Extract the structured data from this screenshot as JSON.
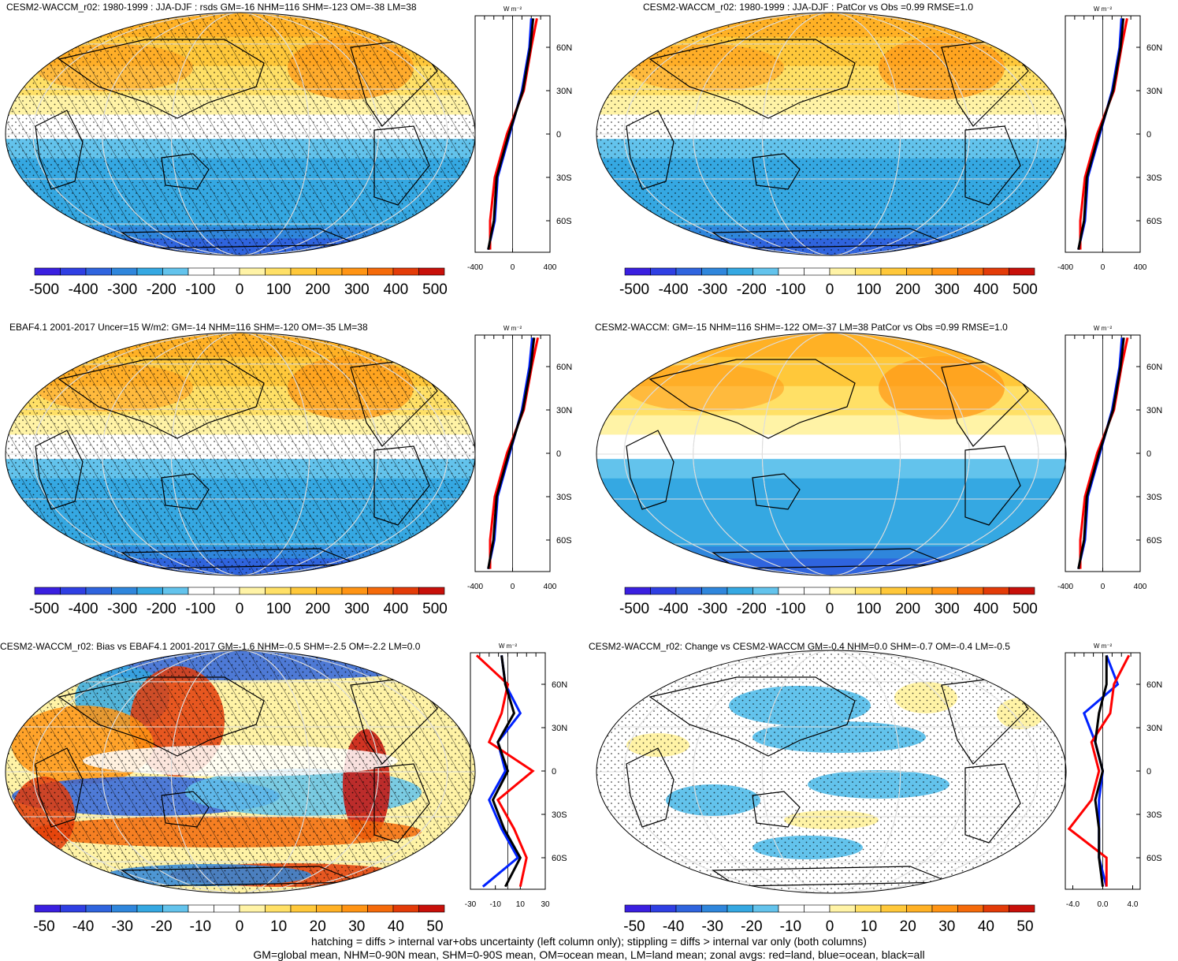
{
  "panels": [
    {
      "title": "CESM2-WACCM_r02: 1980-1999 : JJA-DJF : rsds GM=-16 NHM=116 SHM=-123 OM=-38 LM=38",
      "kind": "seasonal",
      "hatch": true,
      "stipple": true,
      "unit": "W m⁻²",
      "xticks": [
        "-400",
        "0",
        "400"
      ],
      "cbar_labels": [
        "-500",
        "-400",
        "-300",
        "-200",
        "-100",
        "0",
        "100",
        "200",
        "300",
        "400",
        "500"
      ]
    },
    {
      "title": "CESM2-WACCM_r02: 1980-1999 : JJA-DJF : PatCor vs Obs =0.99 RMSE=1.0",
      "kind": "seasonal",
      "hatch": false,
      "stipple": true,
      "unit": "W m⁻²",
      "xticks": [
        "-400",
        "0",
        "400"
      ],
      "cbar_labels": [
        "-500",
        "-400",
        "-300",
        "-200",
        "-100",
        "0",
        "100",
        "200",
        "300",
        "400",
        "500"
      ]
    },
    {
      "title": "EBAF4.1 2001-2017 Uncer=15 W/m2: GM=-14 NHM=116 SHM=-120 OM=-35 LM=38",
      "kind": "seasonal",
      "hatch": true,
      "stipple": true,
      "unit": "W m⁻²",
      "xticks": [
        "-400",
        "0",
        "400"
      ],
      "cbar_labels": [
        "-500",
        "-400",
        "-300",
        "-200",
        "-100",
        "0",
        "100",
        "200",
        "300",
        "400",
        "500"
      ]
    },
    {
      "title": "CESM2-WACCM: GM=-15 NHM=116 SHM=-122 OM=-37 LM=38 PatCor vs Obs =0.99 RMSE=1.0",
      "kind": "seasonal",
      "hatch": false,
      "stipple": false,
      "unit": "W m⁻²",
      "xticks": [
        "-400",
        "0",
        "400"
      ],
      "cbar_labels": [
        "-500",
        "-400",
        "-300",
        "-200",
        "-100",
        "0",
        "100",
        "200",
        "300",
        "400",
        "500"
      ]
    },
    {
      "title": "CESM2-WACCM_r02: Bias vs EBAF4.1 2001-2017 GM=-1.6 NHM=-0.5 SHM=-2.5 OM=-2.2 LM=0.0",
      "kind": "bias",
      "hatch": true,
      "stipple": true,
      "unit": "W m⁻²",
      "xticks": [
        "-30",
        "-10",
        "10",
        "30"
      ],
      "cbar_labels": [
        "-50",
        "-40",
        "-30",
        "-20",
        "-10",
        "0",
        "10",
        "20",
        "30",
        "40",
        "50"
      ]
    },
    {
      "title": "CESM2-WACCM_r02: Change vs CESM2-WACCM GM=-0.4 NHM=0.0 SHM=-0.7 OM=-0.4 LM=-0.5",
      "kind": "change",
      "hatch": false,
      "stipple": true,
      "unit": "W m⁻²",
      "xticks": [
        "-4.0",
        "0.0",
        "4.0"
      ],
      "cbar_labels": [
        "-50",
        "-40",
        "-30",
        "-20",
        "-10",
        "0",
        "10",
        "20",
        "30",
        "40",
        "50"
      ]
    }
  ],
  "lat_labels": [
    "60N",
    "30N",
    "0",
    "30S",
    "60S"
  ],
  "colors": {
    "cbar": [
      "#3a1fe0",
      "#2f3fe3",
      "#2f64de",
      "#2f86dc",
      "#35a8e2",
      "#63c3ec",
      "#ffffff",
      "#ffffff",
      "#fff3a6",
      "#ffe066",
      "#ffc83a",
      "#ffb125",
      "#ff9414",
      "#f56a0a",
      "#e33b08",
      "#c8100a"
    ],
    "land": "#ff0000",
    "ocean": "#0022ff",
    "all": "#000000"
  },
  "chart_data": [
    {
      "type": "heatmap",
      "title": "CESM2-WACCM_r02: 1980-1999 : JJA-DJF : rsds GM=-16 NHM=116 SHM=-123 OM=-38 LM=38",
      "zonal_x_range": [
        -400,
        400
      ],
      "zonal_profile": {
        "lat": [
          80,
          60,
          30,
          0,
          -30,
          -60,
          -80
        ],
        "all": [
          220,
          190,
          110,
          -40,
          -170,
          -200,
          -260
        ],
        "land": [
          260,
          200,
          120,
          -60,
          -190,
          -240,
          -240
        ],
        "ocean": [
          200,
          180,
          100,
          -30,
          -160,
          -190,
          -260
        ]
      },
      "colorbar": [
        -500,
        -400,
        -300,
        -200,
        -100,
        0,
        100,
        200,
        300,
        400,
        500
      ]
    },
    {
      "type": "heatmap",
      "title": "CESM2-WACCM_r02: 1980-1999 : JJA-DJF : PatCor vs Obs =0.99 RMSE=1.0",
      "zonal_x_range": [
        -400,
        400
      ],
      "zonal_profile": {
        "lat": [
          80,
          60,
          30,
          0,
          -30,
          -60,
          -80
        ],
        "all": [
          220,
          190,
          110,
          -40,
          -170,
          -200,
          -260
        ],
        "land": [
          260,
          200,
          120,
          -60,
          -190,
          -240,
          -240
        ],
        "ocean": [
          200,
          180,
          100,
          -30,
          -160,
          -190,
          -260
        ]
      },
      "colorbar": [
        -500,
        -400,
        -300,
        -200,
        -100,
        0,
        100,
        200,
        300,
        400,
        500
      ]
    },
    {
      "type": "heatmap",
      "title": "EBAF4.1 2001-2017 Uncer=15 W/m2: GM=-14 NHM=116 SHM=-120 OM=-35 LM=38",
      "zonal_x_range": [
        -400,
        400
      ],
      "zonal_profile": {
        "lat": [
          80,
          60,
          30,
          0,
          -30,
          -60,
          -80
        ],
        "all": [
          230,
          195,
          110,
          -40,
          -170,
          -205,
          -260
        ],
        "land": [
          270,
          205,
          120,
          -60,
          -190,
          -240,
          -240
        ],
        "ocean": [
          210,
          180,
          100,
          -30,
          -160,
          -195,
          -260
        ]
      },
      "colorbar": [
        -500,
        -400,
        -300,
        -200,
        -100,
        0,
        100,
        200,
        300,
        400,
        500
      ]
    },
    {
      "type": "heatmap",
      "title": "CESM2-WACCM: GM=-15 NHM=116 SHM=-122 OM=-37 LM=38 PatCor vs Obs =0.99 RMSE=1.0",
      "zonal_x_range": [
        -400,
        400
      ],
      "zonal_profile": {
        "lat": [
          80,
          60,
          30,
          0,
          -30,
          -60,
          -80
        ],
        "all": [
          225,
          190,
          110,
          -40,
          -170,
          -200,
          -260
        ],
        "land": [
          265,
          200,
          120,
          -60,
          -190,
          -240,
          -240
        ],
        "ocean": [
          205,
          180,
          100,
          -30,
          -160,
          -190,
          -260
        ]
      },
      "colorbar": [
        -500,
        -400,
        -300,
        -200,
        -100,
        0,
        100,
        200,
        300,
        400,
        500
      ]
    },
    {
      "type": "heatmap",
      "title": "CESM2-WACCM_r02: Bias vs EBAF4.1 2001-2017 GM=-1.6 NHM=-0.5 SHM=-2.5 OM=-2.2 LM=0.0",
      "zonal_x_range": [
        -30,
        30
      ],
      "zonal_profile": {
        "lat": [
          80,
          60,
          40,
          20,
          0,
          -20,
          -40,
          -60,
          -80
        ],
        "all": [
          -5,
          -2,
          5,
          -8,
          0,
          -12,
          -3,
          10,
          -2
        ],
        "land": [
          -25,
          0,
          -5,
          -15,
          20,
          -8,
          5,
          15,
          10
        ],
        "ocean": [
          -5,
          -2,
          10,
          -8,
          -2,
          -15,
          -5,
          8,
          -20
        ]
      },
      "colorbar": [
        -50,
        -40,
        -30,
        -20,
        -10,
        0,
        10,
        20,
        30,
        40,
        50
      ]
    },
    {
      "type": "heatmap",
      "title": "CESM2-WACCM_r02: Change vs CESM2-WACCM GM=-0.4 NHM=0.0 SHM=-0.7 OM=-0.4 LM=-0.5",
      "zonal_x_range": [
        -5,
        5
      ],
      "zonal_profile": {
        "lat": [
          80,
          60,
          40,
          20,
          0,
          -20,
          -40,
          -60,
          -80
        ],
        "all": [
          0.5,
          0.5,
          -0.5,
          -1.0,
          0.0,
          -1.0,
          -0.5,
          -0.5,
          0.0
        ],
        "land": [
          3.5,
          1.5,
          1.0,
          -1.5,
          -0.5,
          -1.5,
          -4.5,
          0.5,
          0.5
        ],
        "ocean": [
          0.5,
          2.0,
          -2.5,
          -1.0,
          0.0,
          -0.5,
          -0.5,
          -0.5,
          0.5
        ]
      },
      "colorbar": [
        -50,
        -40,
        -30,
        -20,
        -10,
        0,
        10,
        20,
        30,
        40,
        50
      ]
    }
  ],
  "caption": {
    "line1": "hatching = diffs > internal var+obs uncertainty (left column only); stippling = diffs > internal var only (both columns)",
    "line2": "GM=global mean, NHM=0-90N mean, SHM=0-90S mean, OM=ocean mean, LM=land mean; zonal avgs: red=land, blue=ocean, black=all"
  }
}
